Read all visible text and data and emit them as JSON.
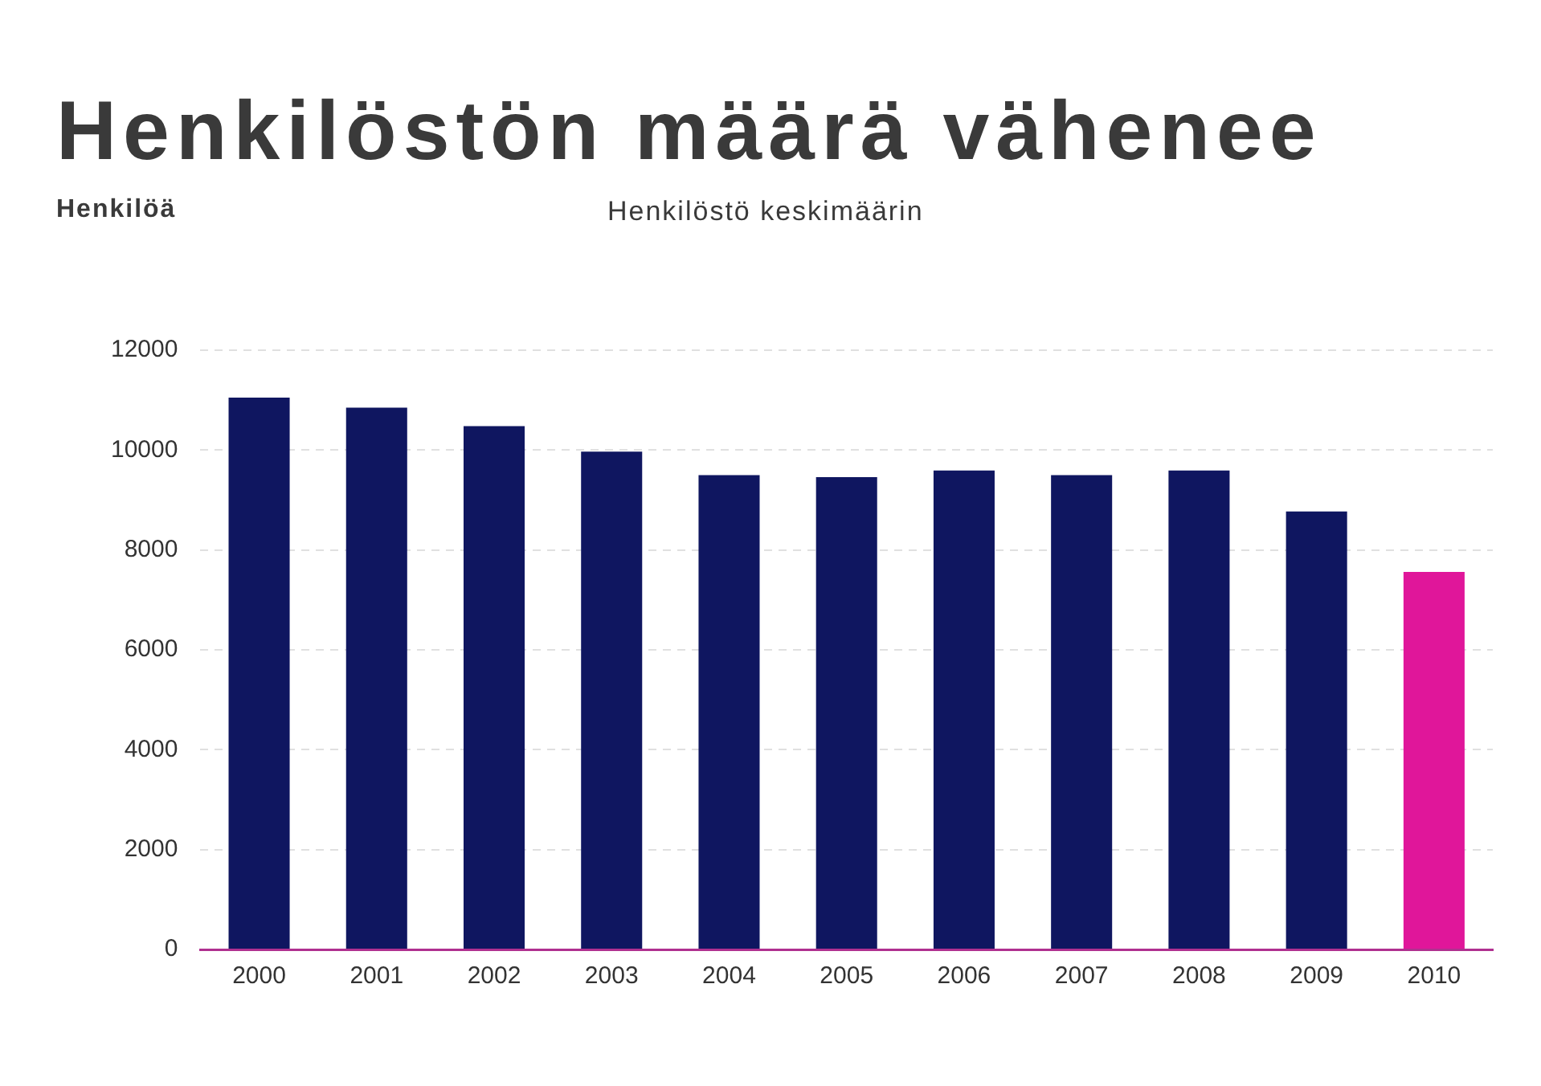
{
  "chart_data": {
    "type": "bar",
    "title": "Henkilöstön määrä vähenee",
    "subtitle": "Henkilöstö keskimäärin",
    "ylabel": "Henkilöä",
    "categories": [
      "2000",
      "2001",
      "2002",
      "2003",
      "2004",
      "2005",
      "2006",
      "2007",
      "2008",
      "2009",
      "2010"
    ],
    "values": [
      11050,
      10850,
      10480,
      9970,
      9500,
      9460,
      9590,
      9500,
      9590,
      8770,
      7560
    ],
    "colors": [
      "#0f1660",
      "#0f1660",
      "#0f1660",
      "#0f1660",
      "#0f1660",
      "#0f1660",
      "#0f1660",
      "#0f1660",
      "#0f1660",
      "#0f1660",
      "#e0169a"
    ],
    "ylim": [
      0,
      12000
    ],
    "yticks": [
      0,
      2000,
      4000,
      6000,
      8000,
      10000,
      12000
    ],
    "grid": "y",
    "legend": false
  }
}
